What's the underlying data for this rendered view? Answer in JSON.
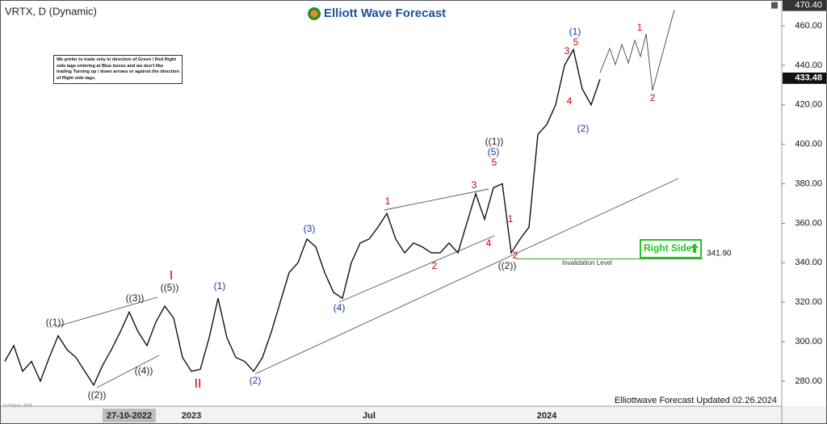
{
  "chart_data": {
    "type": "line",
    "title": "VRTX, D (Dynamic)",
    "brand": "Elliott Wave Forecast",
    "footer": "Elliottwave Forecast Updated 02.26.2024",
    "source": "© eSignal, 2024",
    "note": "We prefer to trade only in direction of Green / Red Right side tags entering at Blue boxes and we don't like trading Turning up / down arrows or against the direction of Right side tags.",
    "categories": [
      null,
      null,
      null,
      null,
      null,
      null,
      null,
      null,
      null,
      null,
      null,
      null,
      null,
      null,
      "27-10-2022",
      null,
      null,
      null,
      null,
      null,
      null,
      "2023",
      null,
      null,
      null,
      null,
      null,
      null,
      null,
      null,
      null,
      null,
      null,
      null,
      null,
      null,
      null,
      null,
      null,
      null,
      null,
      "Jul",
      null,
      null,
      null,
      null,
      null,
      null,
      null,
      null,
      null,
      null,
      null,
      null,
      null,
      null,
      null,
      null,
      null,
      null,
      null,
      "2024",
      null,
      null,
      null,
      null,
      null,
      null
    ],
    "series": [
      {
        "name": "VRTX",
        "color": "#111111",
        "values": [
          290,
          298,
          285,
          290,
          280,
          292,
          303,
          296,
          292,
          285,
          278,
          288,
          296,
          305,
          315,
          305,
          298,
          310,
          318,
          312,
          292,
          285,
          286,
          302,
          322,
          302,
          292,
          290,
          285,
          292,
          305,
          320,
          335,
          340,
          352,
          348,
          335,
          325,
          322,
          340,
          350,
          352,
          358,
          365,
          352,
          345,
          350,
          348,
          345,
          345,
          350,
          345,
          360,
          375,
          362,
          378,
          380,
          345,
          352,
          358,
          405,
          410,
          420,
          440,
          448,
          428,
          420,
          433
        ]
      }
    ],
    "ylim": [
      267.3,
      473.1
    ],
    "yticks": [
      {
        "value": 280,
        "label": "280.00"
      },
      {
        "value": 300,
        "label": "300.00"
      },
      {
        "value": 320,
        "label": "320.00"
      },
      {
        "value": 340,
        "label": "340.00"
      },
      {
        "value": 360,
        "label": "360.00"
      },
      {
        "value": 380,
        "label": "380.00"
      },
      {
        "value": 400,
        "label": "400.00"
      },
      {
        "value": 420,
        "label": "420.00"
      },
      {
        "value": 440,
        "label": "440.00"
      },
      {
        "value": 460,
        "label": "460.00"
      }
    ],
    "high_marker": {
      "value": 470.4,
      "label": "470.40"
    },
    "last_price": 433.48,
    "invalidation": {
      "value": 341.9,
      "label": "341.90",
      "text": "Invalidation Level",
      "color": "#2e9e2e"
    },
    "right_side": {
      "text": "Right Side",
      "color": "#22c322"
    },
    "annotations": [
      {
        "text": "((1))",
        "color": "#222222"
      },
      {
        "text": "((2))",
        "color": "#222222"
      },
      {
        "text": "((3))",
        "color": "#222222"
      },
      {
        "text": "((4))",
        "color": "#222222"
      },
      {
        "text": "((5))",
        "color": "#222222"
      },
      {
        "text": "I",
        "color": "#d40000"
      },
      {
        "text": "II",
        "color": "#d40000"
      },
      {
        "text": "(1)",
        "color": "#1a3a9e"
      },
      {
        "text": "(2)",
        "color": "#1a3a9e"
      },
      {
        "text": "(3)",
        "color": "#1a3a9e"
      },
      {
        "text": "(4)",
        "color": "#1a3a9e"
      },
      {
        "text": "1",
        "color": "#d40000"
      },
      {
        "text": "2",
        "color": "#d40000"
      },
      {
        "text": "3",
        "color": "#d40000"
      },
      {
        "text": "4",
        "color": "#d40000"
      },
      {
        "text": "5",
        "color": "#d40000"
      },
      {
        "text": "(5)",
        "color": "#1a3a9e"
      },
      {
        "text": "((1))",
        "color": "#222222"
      },
      {
        "text": "((2))",
        "color": "#222222"
      },
      {
        "text": "1",
        "color": "#d40000"
      },
      {
        "text": "2",
        "color": "#d40000"
      },
      {
        "text": "3",
        "color": "#d40000"
      },
      {
        "text": "4",
        "color": "#d40000"
      },
      {
        "text": "5",
        "color": "#d40000"
      },
      {
        "text": "(1)",
        "color": "#1a3a9e"
      },
      {
        "text": "(2)",
        "color": "#1a3a9e"
      },
      {
        "text": "1",
        "color": "#d40000"
      },
      {
        "text": "2",
        "color": "#d40000"
      }
    ]
  }
}
